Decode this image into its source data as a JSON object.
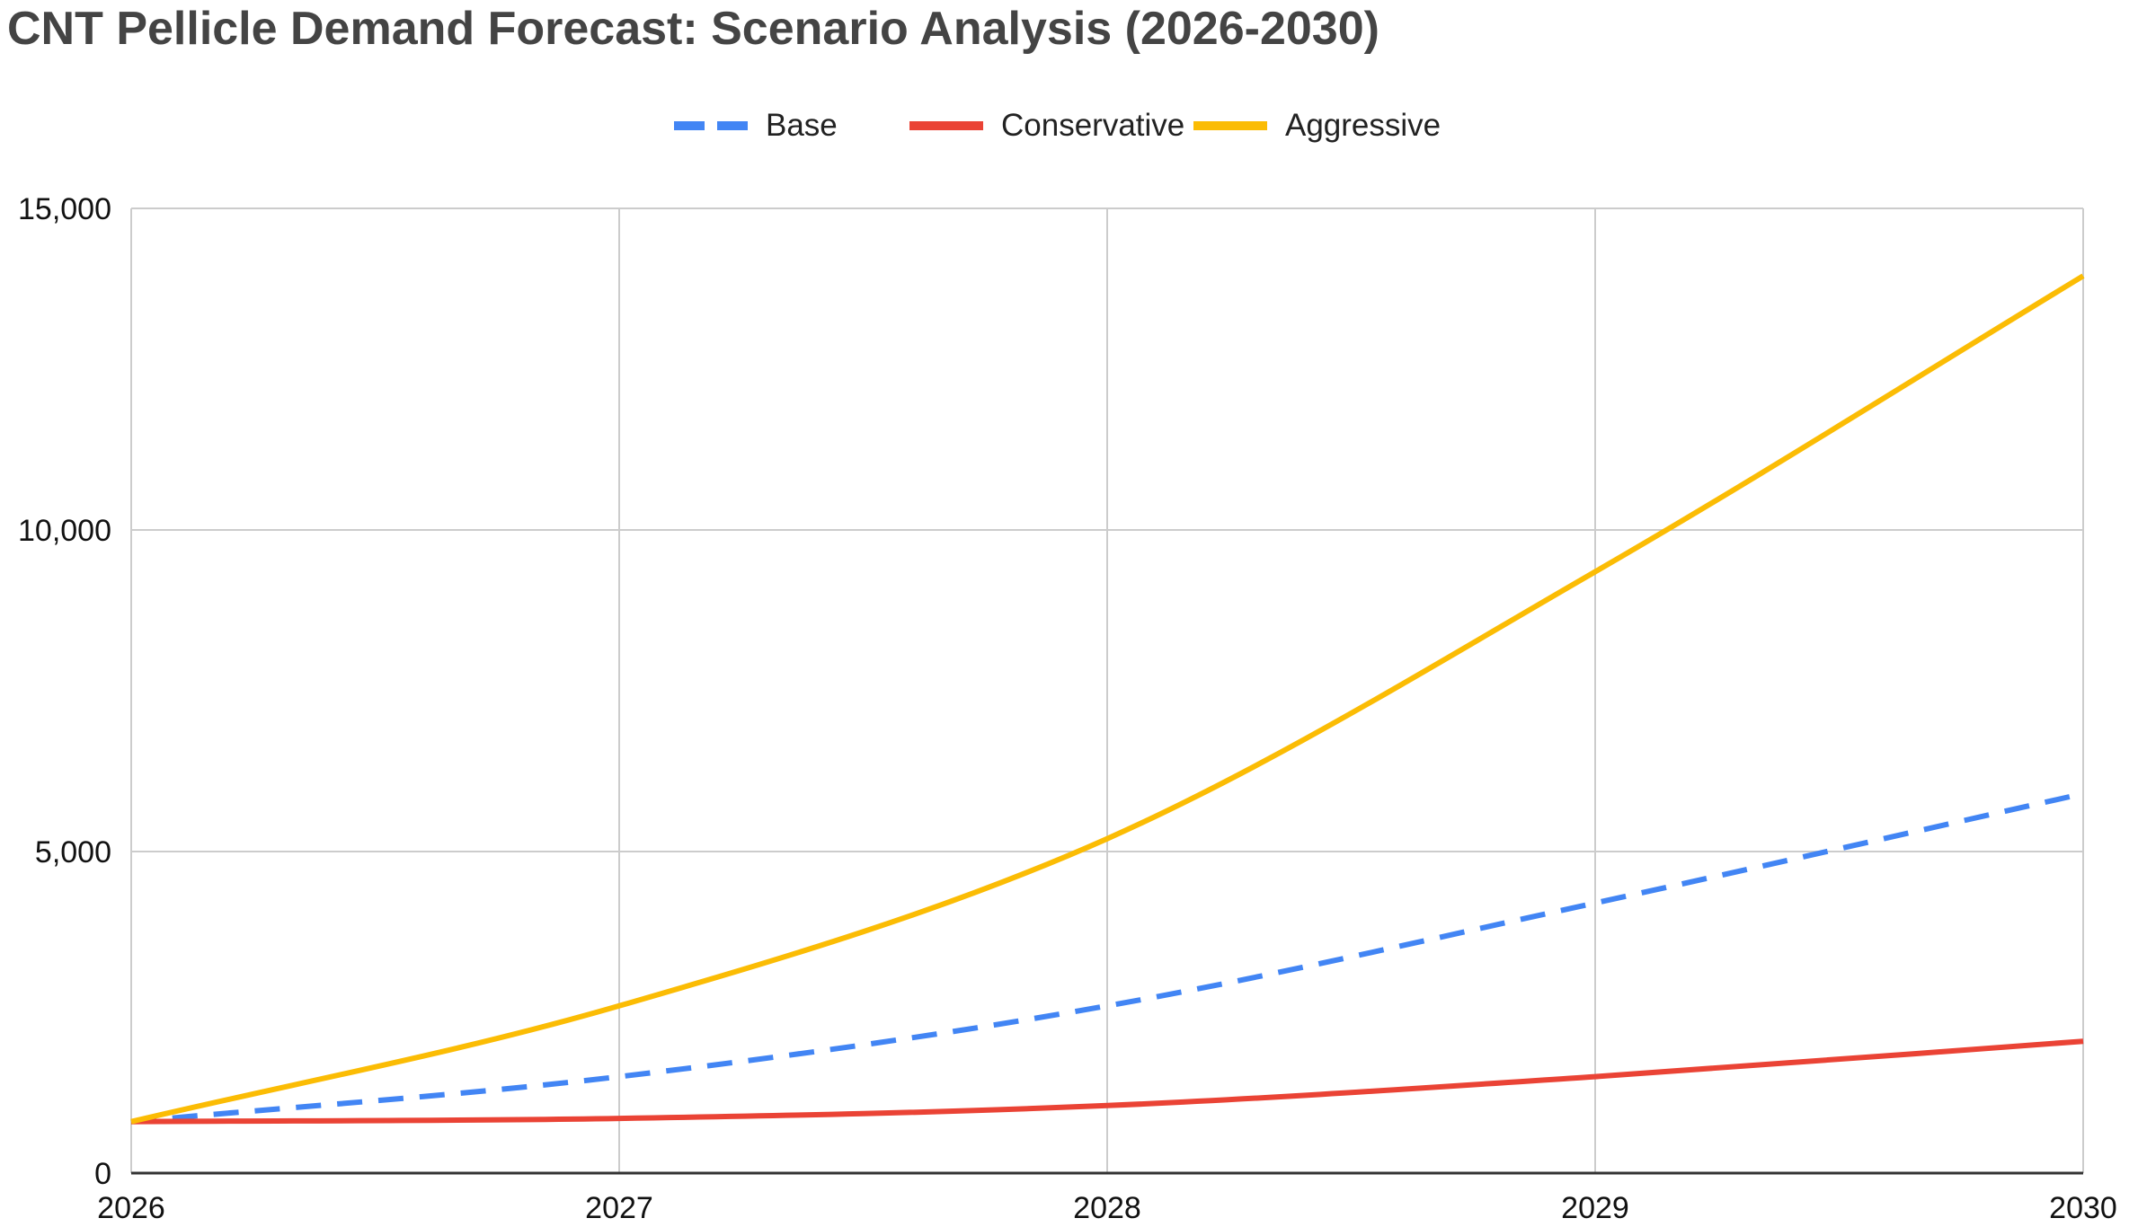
{
  "title": "CNT Pellicle Demand Forecast: Scenario Analysis (2026-2030)",
  "chart_data": {
    "type": "line",
    "title": "CNT Pellicle Demand Forecast: Scenario Analysis (2026-2030)",
    "xlabel": "",
    "ylabel": "",
    "x": [
      2026,
      2027,
      2028,
      2029,
      2030
    ],
    "x_ticks": [
      "2026",
      "2027",
      "2028",
      "2029",
      "2030"
    ],
    "ylim": [
      0,
      15000
    ],
    "y_ticks": [
      "0",
      "5,000",
      "10,000",
      "15,000"
    ],
    "y_tick_values": [
      0,
      5000,
      10000,
      15000
    ],
    "grid": true,
    "legend_position": "top-center",
    "smooth": true,
    "series": [
      {
        "name": "Base",
        "values": [
          800,
          1500,
          2600,
          4200,
          5900
        ],
        "color": "#4285F4",
        "dashed": true
      },
      {
        "name": "Conservative",
        "values": [
          800,
          850,
          1050,
          1500,
          2050
        ],
        "color": "#EA4335",
        "dashed": false
      },
      {
        "name": "Aggressive",
        "values": [
          800,
          2600,
          5200,
          9350,
          13950
        ],
        "color": "#FBBC04",
        "dashed": false
      }
    ]
  }
}
